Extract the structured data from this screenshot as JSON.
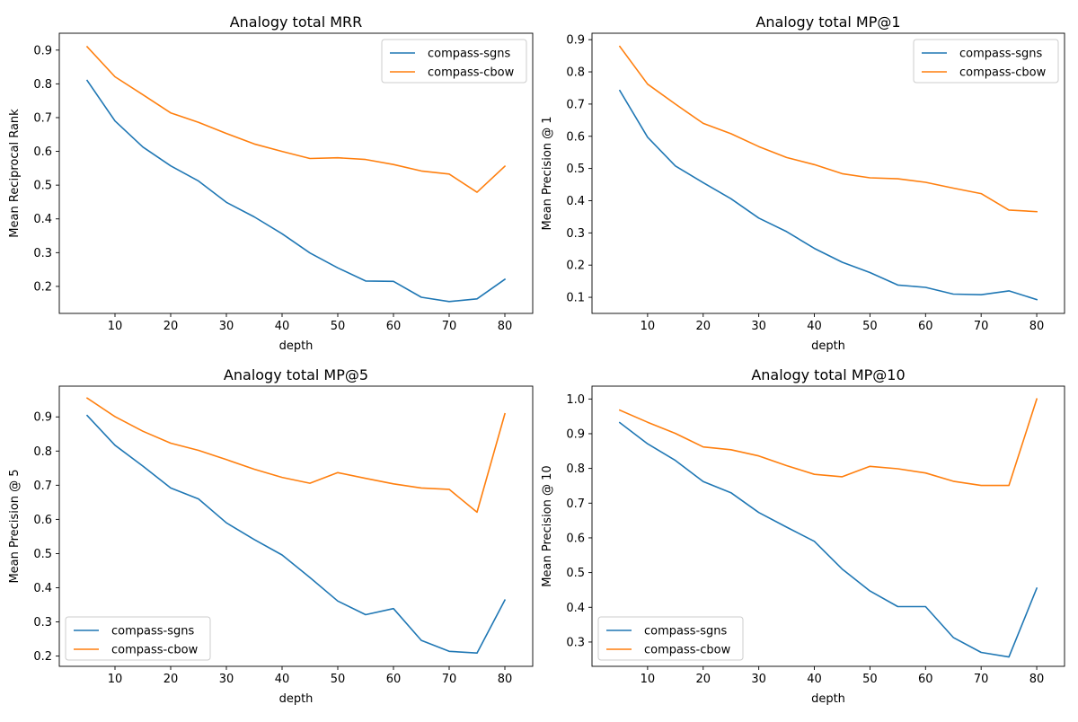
{
  "chart_data": [
    {
      "type": "line",
      "title": "Analogy total MRR",
      "xlabel": "depth",
      "ylabel": "Mean Reciprocal Rank",
      "x": [
        5,
        10,
        15,
        20,
        25,
        30,
        35,
        40,
        45,
        50,
        55,
        60,
        65,
        70,
        75,
        80
      ],
      "xlim": [
        0,
        85
      ],
      "ylim": [
        0.12,
        0.95
      ],
      "xticks": [
        "10",
        "20",
        "30",
        "40",
        "50",
        "60",
        "70",
        "80"
      ],
      "yticks": [
        "0.2",
        "0.3",
        "0.4",
        "0.5",
        "0.6",
        "0.7",
        "0.8",
        "0.9"
      ],
      "legend_position": "upper right",
      "grid": false,
      "series": [
        {
          "name": "compass-sgns",
          "color": "#1f77b4",
          "values": [
            0.81,
            0.69,
            0.613,
            0.557,
            0.512,
            0.449,
            0.406,
            0.356,
            0.299,
            0.255,
            0.216,
            0.215,
            0.168,
            0.155,
            0.163,
            0.221
          ]
        },
        {
          "name": "compass-cbow",
          "color": "#ff7f0e",
          "values": [
            0.91,
            0.821,
            0.768,
            0.714,
            0.686,
            0.653,
            0.622,
            0.6,
            0.579,
            0.581,
            0.576,
            0.561,
            0.542,
            0.533,
            0.479,
            0.556
          ]
        }
      ]
    },
    {
      "type": "line",
      "title": "Analogy total MP@1",
      "xlabel": "depth",
      "ylabel": "Mean Precision @ 1",
      "x": [
        5,
        10,
        15,
        20,
        25,
        30,
        35,
        40,
        45,
        50,
        55,
        60,
        65,
        70,
        75,
        80
      ],
      "xlim": [
        0,
        85
      ],
      "ylim": [
        0.05,
        0.92
      ],
      "xticks": [
        "10",
        "20",
        "30",
        "40",
        "50",
        "60",
        "70",
        "80"
      ],
      "yticks": [
        "0.1",
        "0.2",
        "0.3",
        "0.4",
        "0.5",
        "0.6",
        "0.7",
        "0.8",
        "0.9"
      ],
      "legend_position": "upper right",
      "grid": false,
      "series": [
        {
          "name": "compass-sgns",
          "color": "#1f77b4",
          "values": [
            0.742,
            0.597,
            0.508,
            0.456,
            0.406,
            0.346,
            0.304,
            0.252,
            0.209,
            0.177,
            0.138,
            0.131,
            0.11,
            0.108,
            0.12,
            0.093
          ]
        },
        {
          "name": "compass-cbow",
          "color": "#ff7f0e",
          "values": [
            0.879,
            0.762,
            0.7,
            0.64,
            0.608,
            0.568,
            0.534,
            0.512,
            0.484,
            0.471,
            0.468,
            0.457,
            0.439,
            0.422,
            0.371,
            0.366
          ]
        }
      ]
    },
    {
      "type": "line",
      "title": "Analogy total MP@5",
      "xlabel": "depth",
      "ylabel": "Mean Precision @ 5",
      "x": [
        5,
        10,
        15,
        20,
        25,
        30,
        35,
        40,
        45,
        50,
        55,
        60,
        65,
        70,
        75,
        80
      ],
      "xlim": [
        0,
        85
      ],
      "ylim": [
        0.17,
        0.99
      ],
      "xticks": [
        "10",
        "20",
        "30",
        "40",
        "50",
        "60",
        "70",
        "80"
      ],
      "yticks": [
        "0.2",
        "0.3",
        "0.4",
        "0.5",
        "0.6",
        "0.7",
        "0.8",
        "0.9"
      ],
      "legend_position": "lower left",
      "grid": false,
      "series": [
        {
          "name": "compass-sgns",
          "color": "#1f77b4",
          "values": [
            0.904,
            0.817,
            0.756,
            0.692,
            0.66,
            0.59,
            0.541,
            0.496,
            0.43,
            0.361,
            0.321,
            0.339,
            0.246,
            0.214,
            0.209,
            0.364
          ]
        },
        {
          "name": "compass-cbow",
          "color": "#ff7f0e",
          "values": [
            0.955,
            0.901,
            0.858,
            0.823,
            0.802,
            0.775,
            0.747,
            0.723,
            0.706,
            0.737,
            0.72,
            0.704,
            0.692,
            0.688,
            0.621,
            0.909
          ]
        }
      ]
    },
    {
      "type": "line",
      "title": "Analogy total MP@10",
      "xlabel": "depth",
      "ylabel": "Mean Precision @ 10",
      "x": [
        5,
        10,
        15,
        20,
        25,
        30,
        35,
        40,
        45,
        50,
        55,
        60,
        65,
        70,
        75,
        80
      ],
      "xlim": [
        0,
        85
      ],
      "ylim": [
        0.23,
        1.037
      ],
      "xticks": [
        "10",
        "20",
        "30",
        "40",
        "50",
        "60",
        "70",
        "80"
      ],
      "yticks": [
        "0.3",
        "0.4",
        "0.5",
        "0.6",
        "0.7",
        "0.8",
        "0.9",
        "1.0"
      ],
      "legend_position": "lower left",
      "grid": false,
      "series": [
        {
          "name": "compass-sgns",
          "color": "#1f77b4",
          "values": [
            0.932,
            0.871,
            0.823,
            0.762,
            0.73,
            0.673,
            0.631,
            0.59,
            0.51,
            0.447,
            0.402,
            0.402,
            0.313,
            0.27,
            0.257,
            0.455
          ]
        },
        {
          "name": "compass-cbow",
          "color": "#ff7f0e",
          "values": [
            0.968,
            0.933,
            0.901,
            0.862,
            0.854,
            0.836,
            0.808,
            0.783,
            0.776,
            0.806,
            0.799,
            0.787,
            0.763,
            0.751,
            0.751,
            1.0
          ]
        }
      ]
    }
  ]
}
